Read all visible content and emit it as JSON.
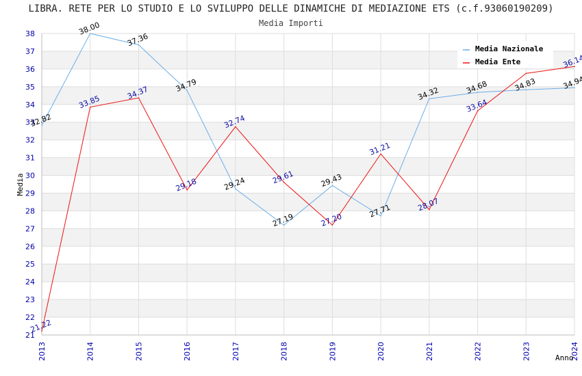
{
  "chart_data": {
    "type": "line",
    "title": "LIBRA. RETE PER LO STUDIO E LO SVILUPPO DELLE DINAMICHE DI MEDIAZIONE ETS (c.f.93060190209)",
    "subtitle": "Media Importi",
    "xlabel": "Anno",
    "ylabel": "Media",
    "ylim": [
      21,
      38
    ],
    "yticks": [
      "21",
      "22",
      "23",
      "24",
      "25",
      "26",
      "27",
      "28",
      "29",
      "30",
      "31",
      "32",
      "33",
      "34",
      "35",
      "36",
      "37",
      "38"
    ],
    "categories": [
      "2013",
      "2014",
      "2015",
      "2016",
      "2017",
      "2018",
      "2019",
      "2020",
      "2021",
      "2022",
      "2023",
      "2024"
    ],
    "series": [
      {
        "name": "Media Nazionale",
        "color": "#6aaee8",
        "values": [
          32.82,
          38.0,
          37.36,
          34.79,
          29.24,
          27.19,
          29.43,
          27.71,
          34.32,
          34.68,
          34.83,
          34.94
        ],
        "labels": [
          "32.82",
          "38.00",
          "37.36",
          "34.79",
          "29.24",
          "27.19",
          "29.43",
          "27.71",
          "34.32",
          "34.68",
          "34.83",
          "34.94"
        ]
      },
      {
        "name": "Media Ente",
        "color": "#ee1111",
        "values": [
          21.22,
          33.85,
          34.37,
          29.18,
          32.74,
          29.61,
          27.2,
          31.21,
          28.07,
          33.64,
          35.75,
          36.14
        ],
        "labels": [
          "21.22",
          "33.85",
          "34.37",
          "29.18",
          "32.74",
          "29.61",
          "27.20",
          "31.21",
          "28.07",
          "33.64",
          "",
          "36.14"
        ]
      }
    ],
    "legend_position": "top-right",
    "grid": true
  }
}
